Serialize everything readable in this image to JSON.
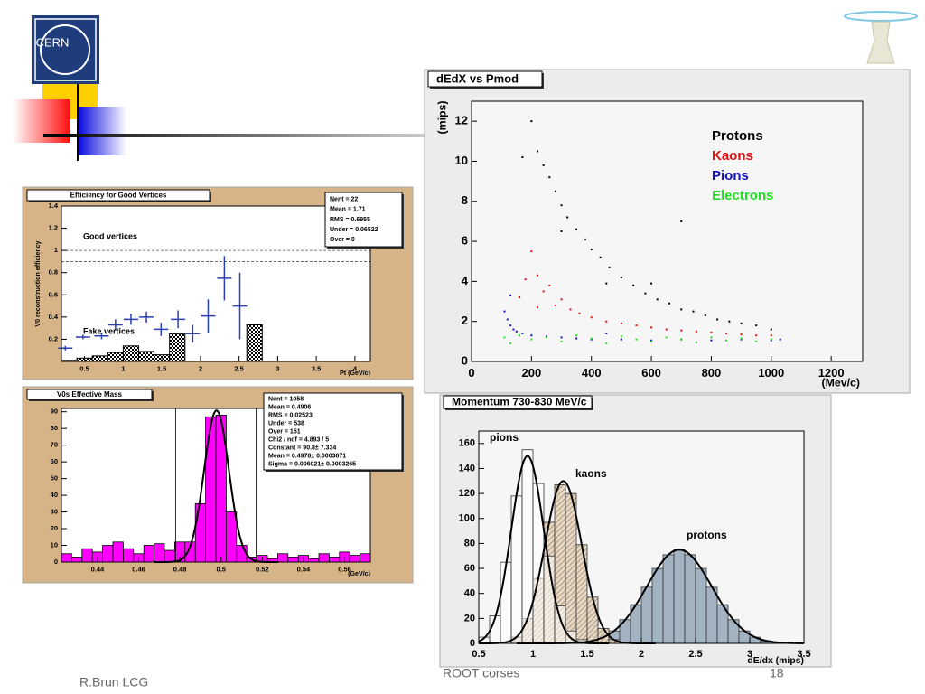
{
  "slide": {
    "logo": "CERN",
    "author": "R.Brun LCG",
    "course": "ROOT corses",
    "page": "18"
  },
  "chart_data": [
    {
      "type": "errorbar",
      "title": "Efficiency for Good Vertices",
      "x_label": "Pt (GeV/c)",
      "y_label": "V0 reconstruction efficiency",
      "xlim": [
        0.2,
        4.2
      ],
      "ylim": [
        0,
        1.4
      ],
      "xticks": [
        0.5,
        1,
        1.5,
        2,
        2.5,
        3,
        3.5,
        4
      ],
      "yticks": [
        0.2,
        0.4,
        0.6,
        0.8,
        1,
        1.2,
        1.4
      ],
      "annotations": [
        "Good vertices",
        "Fake vertices"
      ],
      "reference_lines": [
        1,
        0.9
      ],
      "stats": [
        "Nent = 22",
        "Mean = 1.71",
        "RMS = 0.6955",
        "Under = 0.06522",
        "Over = 0"
      ],
      "points": {
        "color": "#2a3fb0",
        "x": [
          0.25,
          0.48,
          0.72,
          0.9,
          1.1,
          1.3,
          1.49,
          1.71,
          1.9,
          2.1,
          2.31,
          2.51
        ],
        "values": [
          0.12,
          0.22,
          0.23,
          0.33,
          0.38,
          0.4,
          0.29,
          0.38,
          0.25,
          0.41,
          0.75,
          0.5
        ],
        "errors": [
          0.02,
          0.02,
          0.03,
          0.05,
          0.05,
          0.05,
          0.06,
          0.08,
          0.08,
          0.15,
          0.2,
          0.3
        ]
      },
      "bars": {
        "color": "#000000",
        "bins": [
          0.2,
          0.4,
          0.6,
          0.8,
          1.0,
          1.2,
          1.4,
          1.6,
          1.8,
          2.0,
          2.2,
          2.4,
          2.6,
          2.8
        ],
        "values": [
          0.01,
          0.03,
          0.05,
          0.08,
          0.14,
          0.09,
          0.06,
          0.25,
          0,
          0,
          0,
          0,
          0.33
        ]
      }
    },
    {
      "type": "histogram",
      "title": "V0s Effective Mass",
      "x_label": "(GeV/c)",
      "color": "#ff00ff",
      "xlim": [
        0.4225,
        0.5725
      ],
      "ylim": [
        0,
        92
      ],
      "xticks": [
        0.44,
        0.46,
        0.48,
        0.5,
        0.52,
        0.54,
        0.56
      ],
      "yticks": [
        0,
        10,
        20,
        30,
        40,
        50,
        60,
        70,
        80,
        90
      ],
      "bins": [
        0.4225,
        0.4275,
        0.4325,
        0.4375,
        0.4425,
        0.4475,
        0.4525,
        0.4575,
        0.4625,
        0.4675,
        0.4725,
        0.4775,
        0.4825,
        0.4875,
        0.4925,
        0.4975,
        0.5025,
        0.5075,
        0.5125,
        0.5175,
        0.5225,
        0.5275,
        0.5325,
        0.5375,
        0.5425,
        0.5475,
        0.5525,
        0.5575,
        0.5625,
        0.5675,
        0.5725
      ],
      "values": [
        5,
        3,
        8,
        6,
        10,
        12,
        8,
        5,
        10,
        11,
        7,
        12,
        12,
        35,
        87,
        88,
        30,
        10,
        3,
        4,
        2,
        5,
        3,
        4,
        2,
        5,
        3,
        6,
        4,
        5
      ],
      "cut_lines": [
        0.478,
        0.517
      ],
      "fit": {
        "constant": 90.8,
        "mean": 0.4978,
        "sigma": 0.006021
      },
      "stats": [
        "Nent = 1058",
        "Mean = 0.4906",
        "RMS = 0.02523",
        "Under = 538",
        "Over = 151",
        "Chi2 / ndf = 4.893 / 5",
        "Constant = 90.8± 7.334",
        "Mean = 0.4978± 0.0003671",
        "Sigma = 0.006021± 0.0003265"
      ]
    },
    {
      "type": "scatter",
      "title": "dEdX vs Pmod",
      "x_label": "(Mev/c)",
      "y_label": "(mips)",
      "legend": "top-right",
      "xlim": [
        0,
        1305
      ],
      "ylim": [
        0,
        13
      ],
      "xticks": [
        0,
        200,
        400,
        600,
        800,
        1000,
        1200
      ],
      "yticks": [
        0,
        2,
        4,
        6,
        8,
        10,
        12
      ],
      "series": [
        {
          "name": "Protons",
          "color": "#000000",
          "x": [
            200,
            220,
            240,
            260,
            280,
            300,
            320,
            350,
            380,
            400,
            430,
            460,
            500,
            540,
            580,
            620,
            660,
            700,
            740,
            780,
            820,
            860,
            900,
            950,
            1000,
            170,
            300,
            450,
            600,
            700
          ],
          "values": [
            12,
            10.5,
            9.8,
            9.2,
            8.5,
            7.8,
            7.2,
            6.6,
            6.1,
            5.6,
            5.2,
            4.7,
            4.2,
            3.8,
            3.4,
            3.1,
            2.9,
            2.6,
            2.5,
            2.3,
            2.1,
            2,
            1.9,
            1.8,
            1.6,
            10.2,
            6.5,
            3.9,
            3.9,
            7.0
          ]
        },
        {
          "name": "Kaons",
          "color": "#e01010",
          "x": [
            160,
            180,
            200,
            220,
            240,
            260,
            280,
            300,
            330,
            360,
            400,
            450,
            500,
            550,
            600,
            650,
            700,
            750,
            800,
            850,
            900,
            950,
            1000,
            220
          ],
          "values": [
            3.2,
            4.1,
            5.5,
            4.3,
            3.5,
            3.8,
            2.8,
            3.1,
            2.6,
            2.4,
            2.2,
            2.0,
            1.9,
            1.8,
            1.7,
            1.6,
            1.55,
            1.5,
            1.45,
            1.4,
            1.35,
            1.3,
            1.3,
            2.7
          ]
        },
        {
          "name": "Pions",
          "color": "#1010c0",
          "x": [
            110,
            120,
            130,
            140,
            150,
            170,
            200,
            250,
            300,
            350,
            400,
            500,
            600,
            700,
            800,
            900,
            1000,
            1030,
            130,
            450
          ],
          "values": [
            2.5,
            2.1,
            1.8,
            1.6,
            1.5,
            1.4,
            1.3,
            1.25,
            1.2,
            1.15,
            1.1,
            1.1,
            1.05,
            1.1,
            1.05,
            1.1,
            1.05,
            1.1,
            3.3,
            1.4
          ]
        },
        {
          "name": "Electrons",
          "color": "#20e020",
          "x": [
            110,
            130,
            160,
            200,
            250,
            300,
            350,
            400,
            450,
            500,
            550,
            600,
            650,
            700,
            750,
            800,
            850,
            900,
            950,
            1000
          ],
          "values": [
            1.2,
            0.9,
            1.3,
            1.1,
            1.2,
            1.0,
            1.3,
            1.15,
            0.9,
            1.25,
            1.1,
            1.0,
            1.2,
            1.1,
            0.95,
            1.2,
            1.05,
            1.15,
            1.0,
            1.1
          ]
        }
      ]
    },
    {
      "type": "histogram",
      "title": "Momentum 730-830 MeV/c",
      "x_label": "dE/dx (mips)",
      "xlim": [
        0.5,
        3.5
      ],
      "ylim": [
        0,
        170
      ],
      "xticks": [
        0.5,
        1,
        1.5,
        2,
        2.5,
        3,
        3.5
      ],
      "yticks": [
        0,
        20,
        40,
        60,
        80,
        100,
        120,
        140,
        160
      ],
      "bins": [
        0.5,
        0.6,
        0.7,
        0.8,
        0.9,
        1.0,
        1.1,
        1.2,
        1.3,
        1.4,
        1.5,
        1.6,
        1.7,
        1.8,
        1.9,
        2.0,
        2.1,
        2.2,
        2.3,
        2.4,
        2.5,
        2.6,
        2.7,
        2.8,
        2.9,
        3.0,
        3.1,
        3.2,
        3.3,
        3.4,
        3.5
      ],
      "series": [
        {
          "name": "pions",
          "color": "#ffffff",
          "fill_style": "solid",
          "values": [
            5,
            22,
            65,
            118,
            155,
            128,
            70,
            30,
            10,
            3,
            1,
            0,
            0,
            0,
            0,
            0,
            0,
            0,
            0,
            0,
            0,
            0,
            0,
            0,
            0,
            0,
            0,
            0,
            0,
            0
          ],
          "fit": {
            "constant": 150,
            "mean": 0.95,
            "sigma": 0.15
          }
        },
        {
          "name": "kaons",
          "color": "#d8c4a8",
          "fill_style": "hatched",
          "values": [
            0,
            0,
            1,
            5,
            20,
            52,
            97,
            127,
            120,
            79,
            37,
            12,
            3,
            1,
            0,
            0,
            0,
            0,
            0,
            0,
            0,
            0,
            0,
            0,
            0,
            0,
            0,
            0,
            0,
            0
          ],
          "fit": {
            "constant": 130,
            "mean": 1.28,
            "sigma": 0.17
          }
        },
        {
          "name": "protons",
          "color": "#a3b3c2",
          "fill_style": "solid",
          "values": [
            0,
            0,
            0,
            0,
            0,
            0,
            0,
            0,
            0,
            0,
            2,
            5,
            10,
            19,
            31,
            45,
            60,
            71,
            75,
            71,
            60,
            45,
            31,
            19,
            10,
            5,
            2,
            1,
            1,
            0
          ],
          "fit": {
            "constant": 75,
            "mean": 2.35,
            "sigma": 0.3
          }
        }
      ]
    }
  ]
}
